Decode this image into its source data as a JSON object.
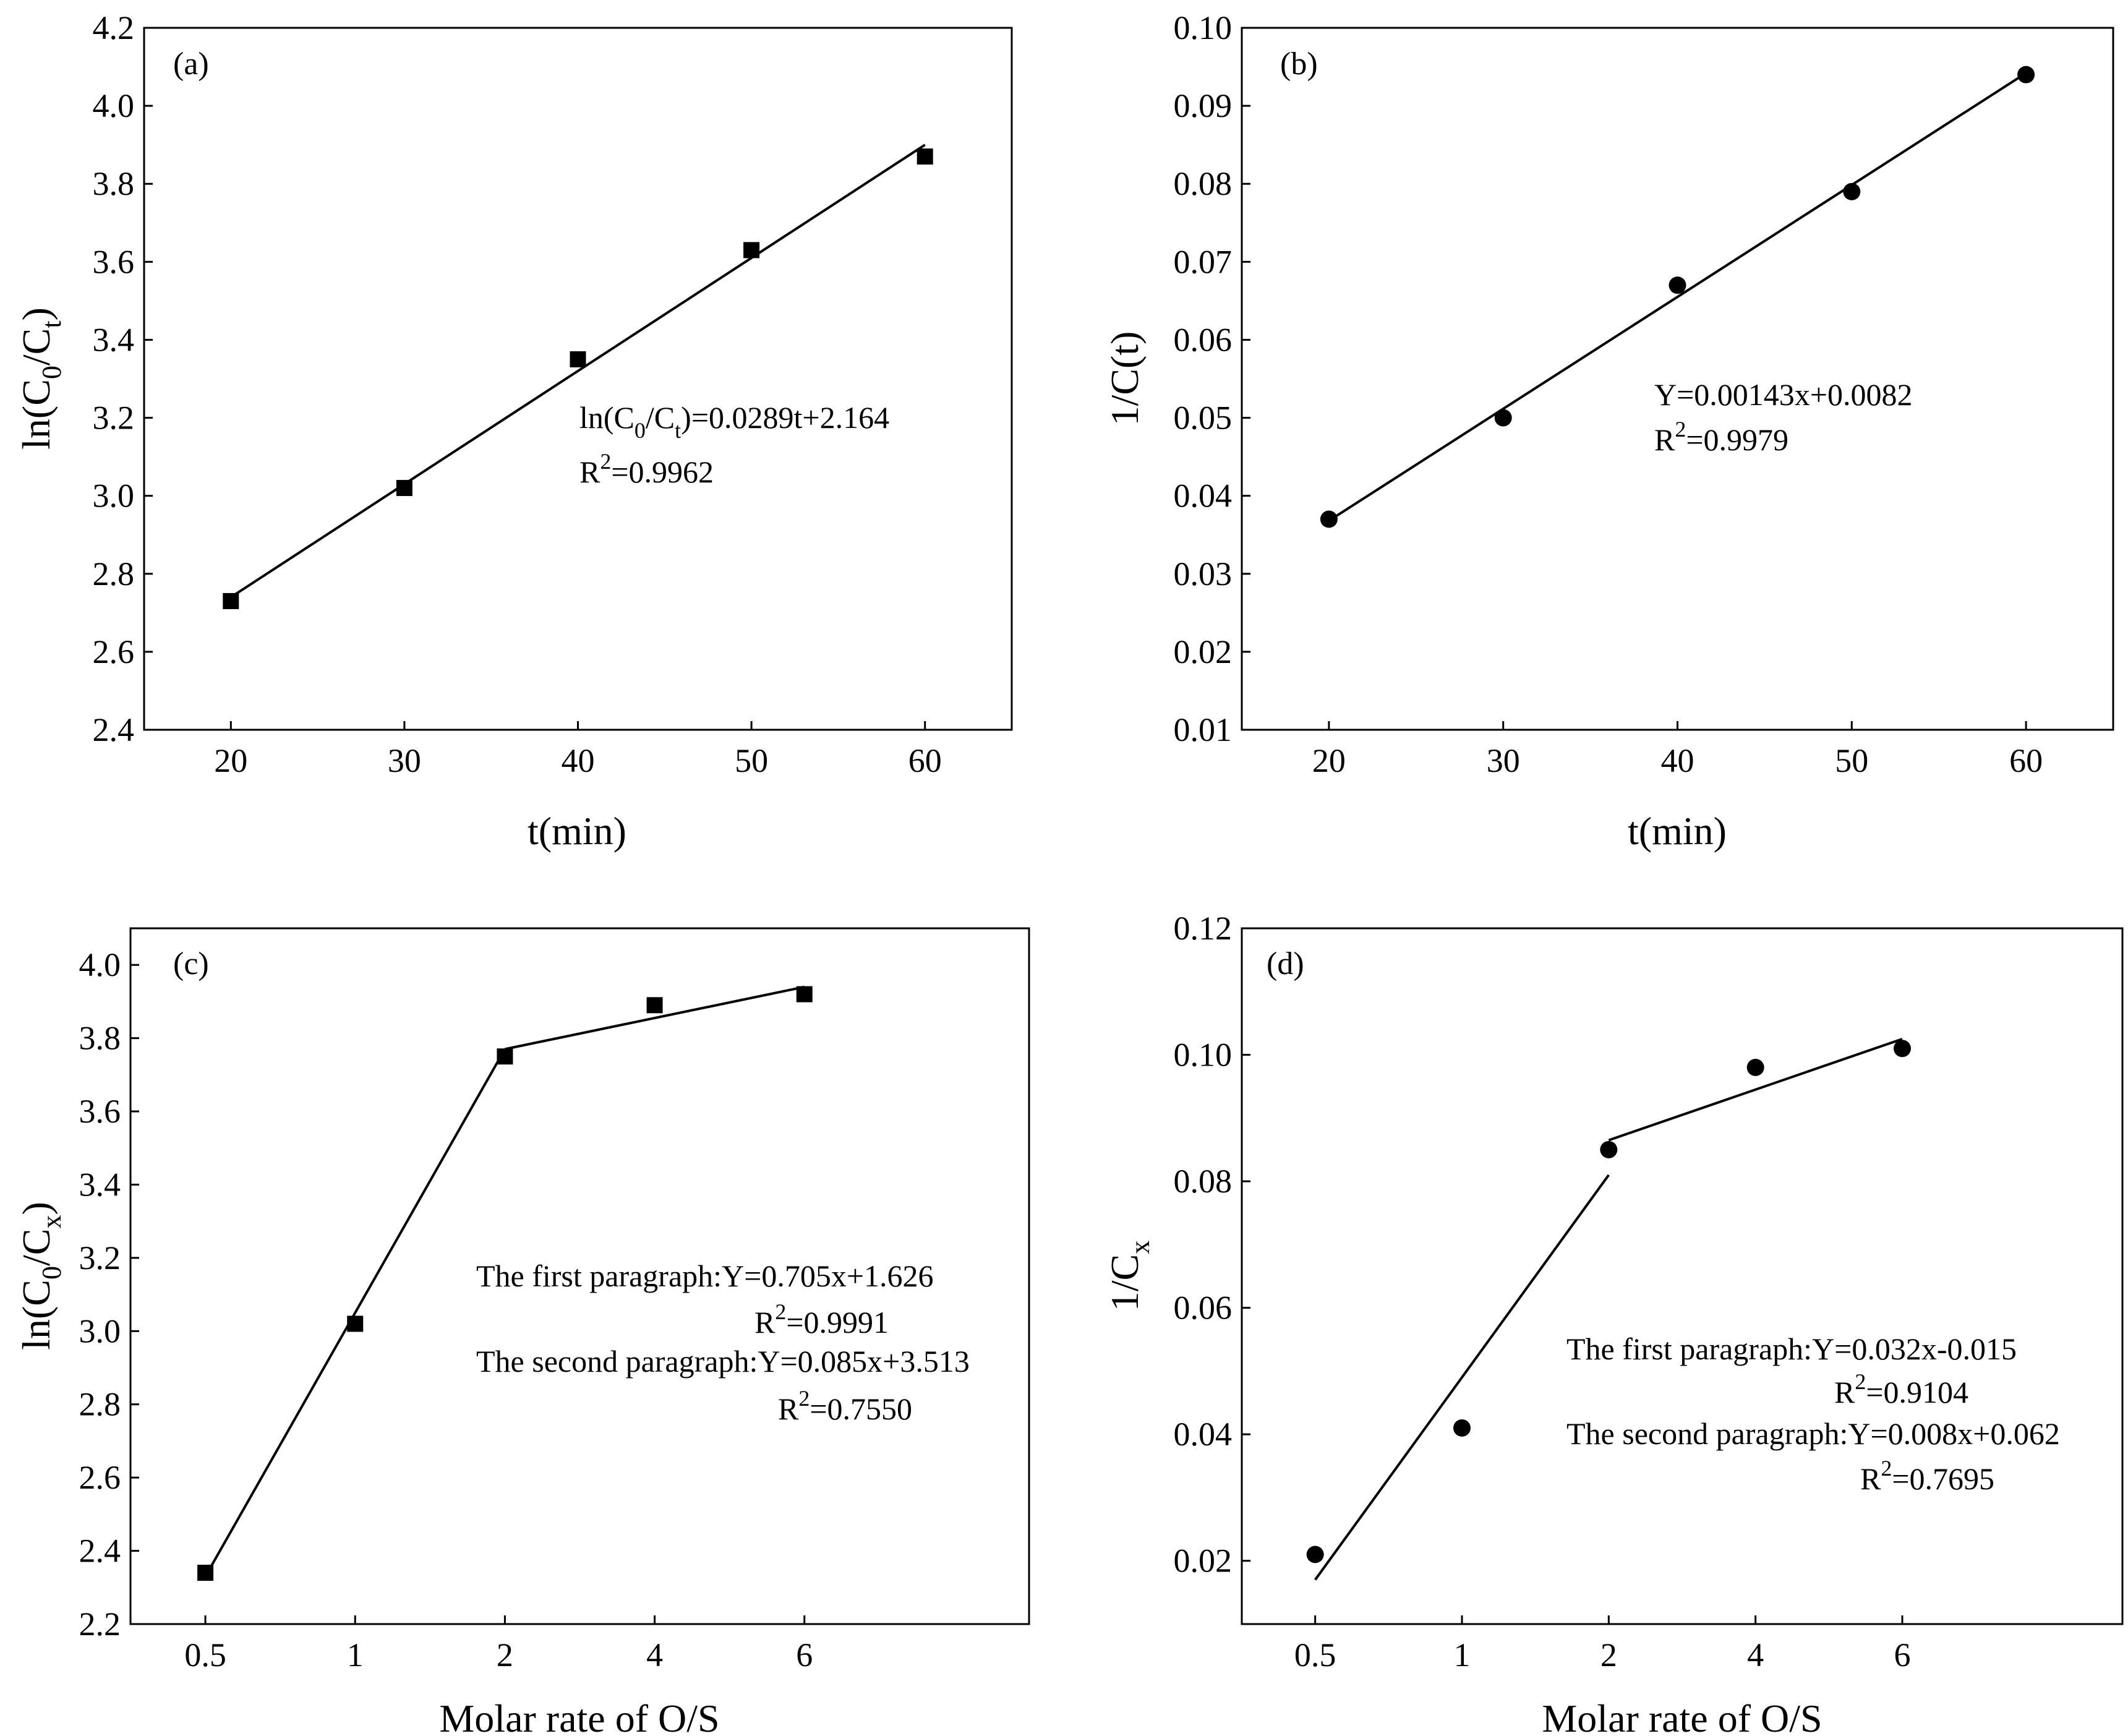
{
  "chart_data": [
    {
      "panel": "a",
      "type": "scatter",
      "title": "(a)",
      "marker": "square",
      "xlabel": "t(min)",
      "ylabel": {
        "main": "ln(C",
        "sub1": "0",
        "mid": "/C",
        "sub2": "t",
        "end": ")"
      },
      "xlim": [
        15,
        65
      ],
      "ylim": [
        2.4,
        4.2
      ],
      "xticks": [
        "20",
        "30",
        "40",
        "50",
        "60"
      ],
      "xtick_values": [
        20,
        30,
        40,
        50,
        60
      ],
      "yticks": [
        "2.4",
        "2.6",
        "2.8",
        "3.0",
        "3.2",
        "3.4",
        "3.6",
        "3.8",
        "4.0",
        "4.2"
      ],
      "ytick_values": [
        2.4,
        2.6,
        2.8,
        3.0,
        3.2,
        3.4,
        3.6,
        3.8,
        4.0,
        4.2
      ],
      "x": [
        20,
        30,
        40,
        50,
        60
      ],
      "y": [
        2.73,
        3.02,
        3.35,
        3.63,
        3.87
      ],
      "fits": [
        {
          "x0": 20,
          "y0": 2.74,
          "x1": 60,
          "y1": 3.9
        }
      ],
      "annotation": {
        "eq": {
          "a": "ln(C",
          "s1": "0",
          "b": "/C",
          "s2": "t",
          "c": ")=0.0289t+2.164"
        },
        "r2": {
          "a": "R",
          "sup": "2",
          "b": "=0.9962"
        }
      }
    },
    {
      "panel": "b",
      "type": "scatter",
      "title": "(b)",
      "marker": "circle",
      "xlabel": "t(min)",
      "ylabel": "1/C(t)",
      "xlim": [
        15,
        65
      ],
      "ylim": [
        0.01,
        0.1
      ],
      "xticks": [
        "20",
        "30",
        "40",
        "50",
        "60"
      ],
      "xtick_values": [
        20,
        30,
        40,
        50,
        60
      ],
      "yticks": [
        "0.01",
        "0.02",
        "0.03",
        "0.04",
        "0.05",
        "0.06",
        "0.07",
        "0.08",
        "0.09",
        "0.10"
      ],
      "ytick_values": [
        0.01,
        0.02,
        0.03,
        0.04,
        0.05,
        0.06,
        0.07,
        0.08,
        0.09,
        0.1
      ],
      "x": [
        20,
        30,
        40,
        50,
        60
      ],
      "y": [
        0.037,
        0.05,
        0.067,
        0.079,
        0.094
      ],
      "fits": [
        {
          "x0": 20,
          "y0": 0.0368,
          "x1": 60,
          "y1": 0.0942
        }
      ],
      "annotation": {
        "eq": "Y=0.00143x+0.0082",
        "r2": {
          "a": "R",
          "sup": "2",
          "b": "=0.9979"
        }
      }
    },
    {
      "panel": "c",
      "type": "scatter",
      "title": "(c)",
      "marker": "square",
      "xlabel": "Molar rate of O/S",
      "ylabel": {
        "main": "ln(C",
        "sub1": "0",
        "mid": "/C",
        "sub2": "x",
        "end": ")"
      },
      "xlim": [
        0,
        6
      ],
      "ylim": [
        2.2,
        4.1
      ],
      "xticks": [
        "0.5",
        "1",
        "2",
        "4",
        "6"
      ],
      "xtick_values": [
        0.5,
        1.5,
        2.5,
        3.5,
        4.5
      ],
      "yticks": [
        "2.2",
        "2.4",
        "2.6",
        "2.8",
        "3.0",
        "3.2",
        "3.4",
        "3.6",
        "3.8",
        "4.0"
      ],
      "ytick_values": [
        2.2,
        2.4,
        2.6,
        2.8,
        3.0,
        3.2,
        3.4,
        3.6,
        3.8,
        4.0
      ],
      "x": [
        0.5,
        1.5,
        2.5,
        3.5,
        4.5
      ],
      "y": [
        2.34,
        3.02,
        3.75,
        3.89,
        3.92
      ],
      "fits": [
        {
          "x0": 0.5,
          "y0": 2.33,
          "x1": 2.5,
          "y1": 3.77
        },
        {
          "x0": 2.5,
          "y0": 3.77,
          "x1": 4.5,
          "y1": 3.94
        }
      ],
      "annotation": {
        "first": "The first paragraph:Y=0.705x+1.626",
        "r2a": {
          "a": "R",
          "sup": "2",
          "b": "=0.9991"
        },
        "second": "The second paragraph:Y=0.085x+3.513",
        "r2b": {
          "a": "R",
          "sup": "2",
          "b": "=0.7550"
        }
      }
    },
    {
      "panel": "d",
      "type": "scatter",
      "title": "(d)",
      "marker": "circle",
      "xlabel": "Molar rate of O/S",
      "ylabel": {
        "main": "1/C",
        "sub": "x"
      },
      "xlim": [
        0,
        6
      ],
      "ylim": [
        0.01,
        0.12
      ],
      "xticks": [
        "0.5",
        "1",
        "2",
        "4",
        "6"
      ],
      "xtick_values": [
        0.5,
        1.5,
        2.5,
        3.5,
        4.5
      ],
      "yticks": [
        "0.02",
        "0.04",
        "0.06",
        "0.08",
        "0.10",
        "0.12"
      ],
      "ytick_values": [
        0.02,
        0.04,
        0.06,
        0.08,
        0.1,
        0.12
      ],
      "x": [
        0.5,
        1.5,
        2.5,
        3.5,
        4.5
      ],
      "y": [
        0.021,
        0.041,
        0.085,
        0.098,
        0.101
      ],
      "fits": [
        {
          "x0": 0.5,
          "y0": 0.017,
          "x1": 2.5,
          "y1": 0.081
        },
        {
          "x0": 2.5,
          "y0": 0.0865,
          "x1": 4.5,
          "y1": 0.1025
        }
      ],
      "annotation": {
        "first": "The first paragraph:Y=0.032x-0.015",
        "r2a": {
          "a": "R",
          "sup": "2",
          "b": "=0.9104"
        },
        "second": "The second paragraph:Y=0.008x+0.062",
        "r2b": {
          "a": "R",
          "sup": "2",
          "b": "=0.7695"
        }
      }
    }
  ]
}
